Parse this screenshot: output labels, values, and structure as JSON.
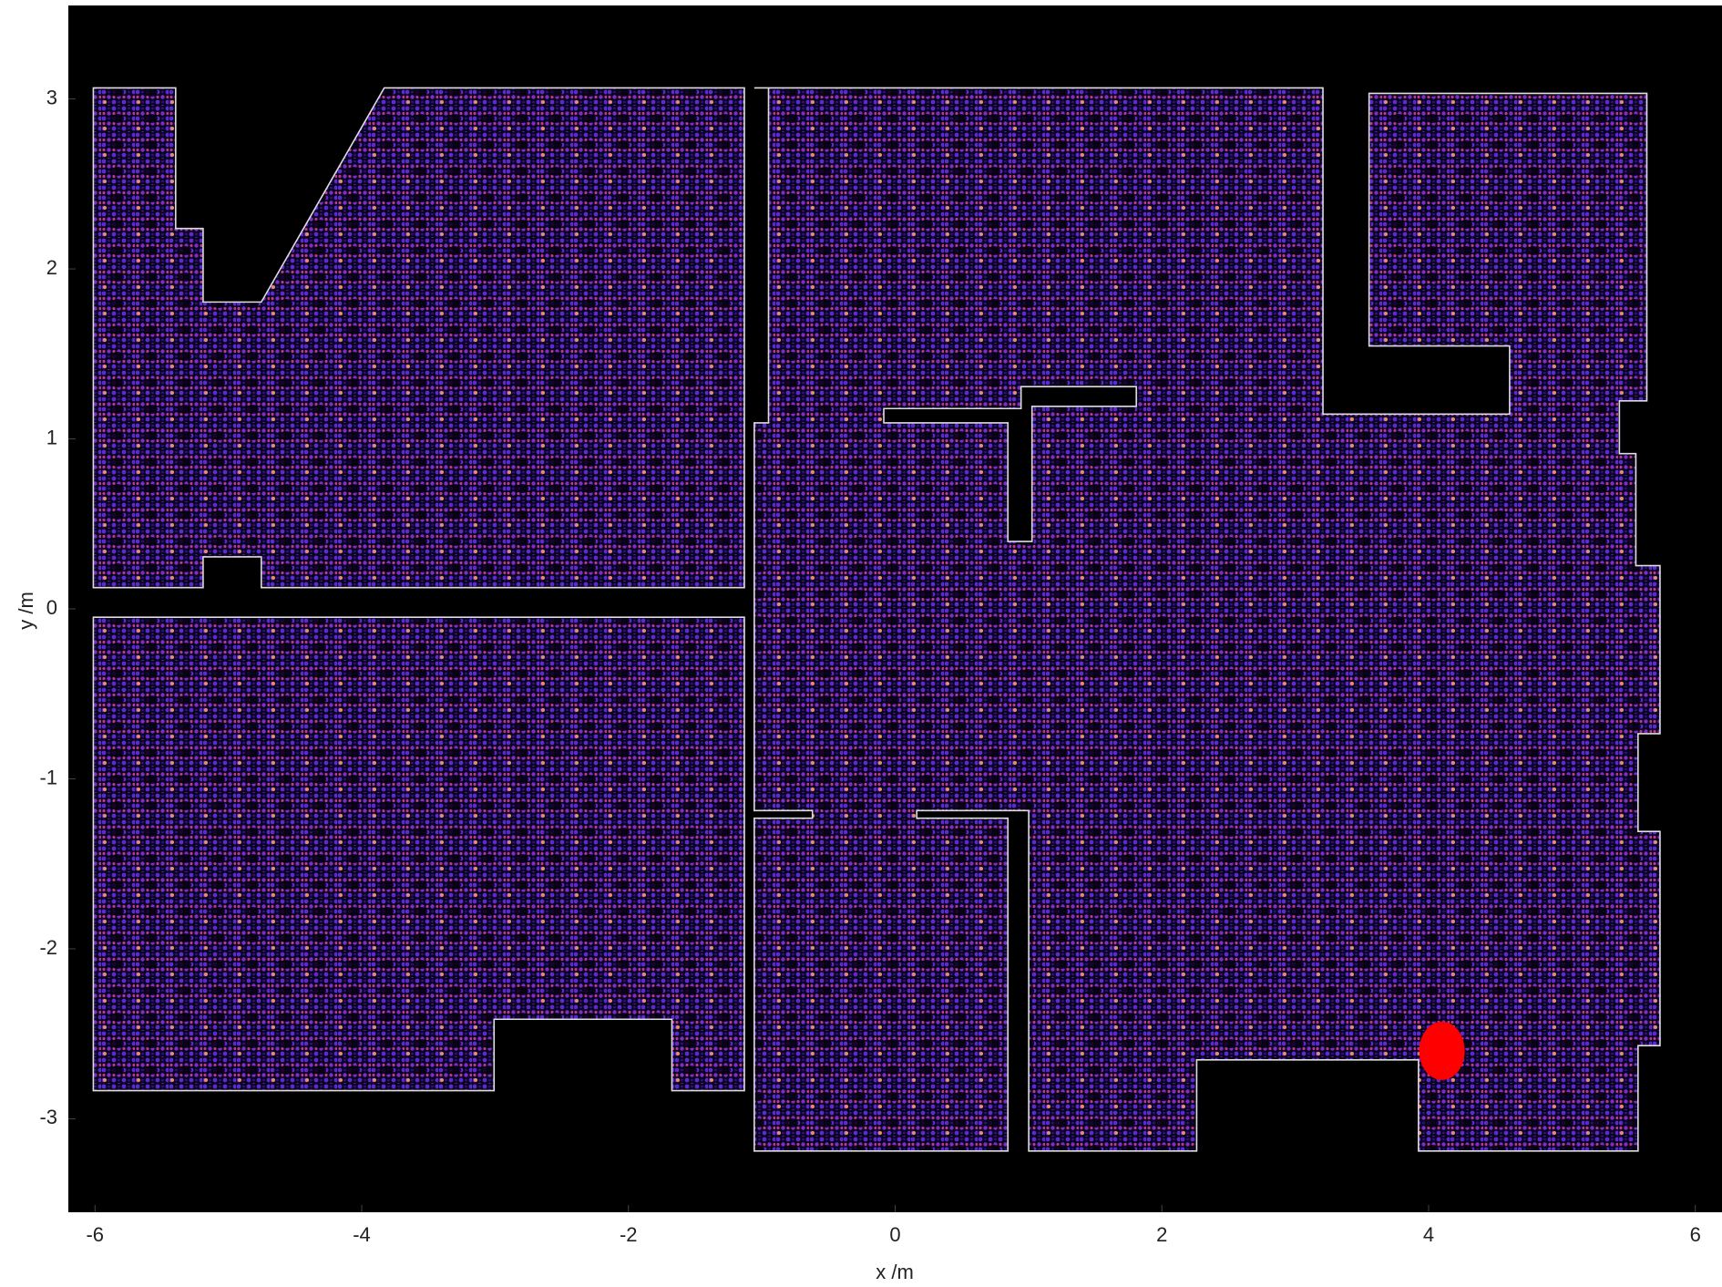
{
  "chart_data": {
    "type": "scatter",
    "xlabel": "x /m",
    "ylabel": "y /m",
    "x": [
      4.1
    ],
    "values": [
      -2.6
    ],
    "color": "#ff0000",
    "xlim": [
      -6.2,
      6.2
    ],
    "ylim": [
      -3.55,
      3.55
    ],
    "xticks": [
      -6,
      -4,
      -2,
      0,
      2,
      4,
      6
    ],
    "yticks": [
      -3,
      -2,
      -1,
      0,
      1,
      2,
      3
    ]
  }
}
